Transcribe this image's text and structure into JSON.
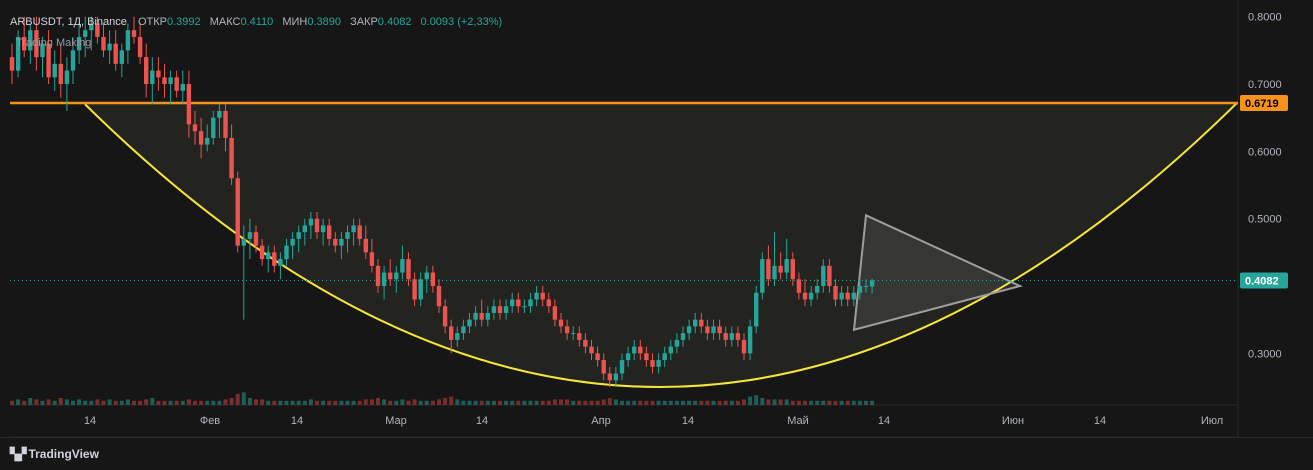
{
  "legend": {
    "symbol": "ARBUSDT, 1Д, Binance",
    "open_label": "ОТКР",
    "open": "0.3992",
    "high_label": "МАКС",
    "high": "0.4110",
    "low_label": "МИН",
    "low": "0.3890",
    "close_label": "ЗАКР",
    "close": "0.4082",
    "change": "0.0093 (+2,33%)"
  },
  "watermark": "Trading Making",
  "footer_brand": "TradingView",
  "colors": {
    "background": "#161616",
    "up": "#26a69a",
    "down": "#ef5350",
    "resistance": "#f7931a",
    "cup_curve": "#f5e53a",
    "triangle": "#9e9e9e",
    "price_label": "#26a69a"
  },
  "chart_data": {
    "type": "candlestick",
    "y_ticks": [
      "0.8000",
      "0.7000",
      "0.6000",
      "0.5000",
      "0.3000"
    ],
    "x_ticks": [
      "14",
      "Фев",
      "14",
      "Мар",
      "14",
      "Апр",
      "14",
      "Май",
      "14",
      "Июн",
      "14",
      "Июл"
    ],
    "ylim": [
      0.25,
      0.81
    ],
    "resistance_level": {
      "label": "0.6719",
      "value": 0.6719
    },
    "last_price": {
      "label": "0.4082",
      "value": 0.4082
    },
    "cup": {
      "start_price": 0.67,
      "bottom_price": 0.25,
      "end_price": 0.6719
    },
    "triangle": {
      "top": 0.505,
      "bottom": 0.335,
      "apex": 0.4
    },
    "candles": [
      [
        0.74,
        0.76,
        0.7,
        0.72
      ],
      [
        0.72,
        0.78,
        0.71,
        0.77
      ],
      [
        0.77,
        0.8,
        0.74,
        0.75
      ],
      [
        0.75,
        0.79,
        0.73,
        0.78
      ],
      [
        0.78,
        0.8,
        0.72,
        0.74
      ],
      [
        0.74,
        0.77,
        0.71,
        0.76
      ],
      [
        0.76,
        0.78,
        0.7,
        0.71
      ],
      [
        0.71,
        0.75,
        0.69,
        0.73
      ],
      [
        0.73,
        0.76,
        0.68,
        0.7
      ],
      [
        0.7,
        0.74,
        0.66,
        0.72
      ],
      [
        0.72,
        0.77,
        0.7,
        0.75
      ],
      [
        0.75,
        0.79,
        0.73,
        0.77
      ],
      [
        0.77,
        0.8,
        0.74,
        0.78
      ],
      [
        0.78,
        0.8,
        0.75,
        0.79
      ],
      [
        0.79,
        0.8,
        0.76,
        0.77
      ],
      [
        0.77,
        0.79,
        0.74,
        0.75
      ],
      [
        0.75,
        0.78,
        0.73,
        0.76
      ],
      [
        0.76,
        0.78,
        0.72,
        0.73
      ],
      [
        0.73,
        0.76,
        0.71,
        0.75
      ],
      [
        0.75,
        0.79,
        0.73,
        0.78
      ],
      [
        0.78,
        0.8,
        0.76,
        0.77
      ],
      [
        0.77,
        0.79,
        0.73,
        0.74
      ],
      [
        0.74,
        0.76,
        0.68,
        0.7
      ],
      [
        0.7,
        0.74,
        0.67,
        0.72
      ],
      [
        0.72,
        0.74,
        0.69,
        0.71
      ],
      [
        0.71,
        0.73,
        0.68,
        0.7
      ],
      [
        0.7,
        0.72,
        0.67,
        0.71
      ],
      [
        0.71,
        0.72,
        0.68,
        0.69
      ],
      [
        0.69,
        0.72,
        0.67,
        0.7
      ],
      [
        0.7,
        0.72,
        0.62,
        0.64
      ],
      [
        0.64,
        0.66,
        0.61,
        0.63
      ],
      [
        0.63,
        0.65,
        0.59,
        0.61
      ],
      [
        0.61,
        0.64,
        0.6,
        0.62
      ],
      [
        0.62,
        0.66,
        0.61,
        0.65
      ],
      [
        0.65,
        0.67,
        0.62,
        0.66
      ],
      [
        0.66,
        0.67,
        0.6,
        0.62
      ],
      [
        0.62,
        0.64,
        0.55,
        0.56
      ],
      [
        0.56,
        0.57,
        0.45,
        0.46
      ],
      [
        0.46,
        0.49,
        0.35,
        0.47
      ],
      [
        0.47,
        0.5,
        0.44,
        0.48
      ],
      [
        0.48,
        0.49,
        0.45,
        0.46
      ],
      [
        0.46,
        0.47,
        0.43,
        0.44
      ],
      [
        0.44,
        0.46,
        0.42,
        0.45
      ],
      [
        0.45,
        0.46,
        0.42,
        0.43
      ],
      [
        0.43,
        0.45,
        0.41,
        0.44
      ],
      [
        0.44,
        0.47,
        0.43,
        0.46
      ],
      [
        0.46,
        0.48,
        0.44,
        0.47
      ],
      [
        0.47,
        0.49,
        0.45,
        0.48
      ],
      [
        0.48,
        0.5,
        0.46,
        0.49
      ],
      [
        0.49,
        0.51,
        0.47,
        0.5
      ],
      [
        0.5,
        0.51,
        0.47,
        0.48
      ],
      [
        0.48,
        0.5,
        0.46,
        0.49
      ],
      [
        0.49,
        0.5,
        0.46,
        0.47
      ],
      [
        0.47,
        0.48,
        0.45,
        0.46
      ],
      [
        0.46,
        0.48,
        0.44,
        0.47
      ],
      [
        0.47,
        0.49,
        0.45,
        0.48
      ],
      [
        0.48,
        0.5,
        0.46,
        0.49
      ],
      [
        0.49,
        0.5,
        0.46,
        0.47
      ],
      [
        0.47,
        0.49,
        0.44,
        0.45
      ],
      [
        0.45,
        0.47,
        0.42,
        0.43
      ],
      [
        0.43,
        0.44,
        0.39,
        0.4
      ],
      [
        0.4,
        0.43,
        0.38,
        0.42
      ],
      [
        0.42,
        0.44,
        0.4,
        0.41
      ],
      [
        0.41,
        0.43,
        0.39,
        0.42
      ],
      [
        0.42,
        0.46,
        0.41,
        0.44
      ],
      [
        0.44,
        0.45,
        0.4,
        0.41
      ],
      [
        0.41,
        0.42,
        0.37,
        0.38
      ],
      [
        0.38,
        0.42,
        0.37,
        0.41
      ],
      [
        0.41,
        0.43,
        0.39,
        0.42
      ],
      [
        0.42,
        0.43,
        0.39,
        0.4
      ],
      [
        0.4,
        0.41,
        0.36,
        0.37
      ],
      [
        0.37,
        0.38,
        0.33,
        0.34
      ],
      [
        0.34,
        0.35,
        0.3,
        0.32
      ],
      [
        0.32,
        0.34,
        0.31,
        0.33
      ],
      [
        0.33,
        0.35,
        0.32,
        0.34
      ],
      [
        0.34,
        0.36,
        0.33,
        0.35
      ],
      [
        0.35,
        0.37,
        0.34,
        0.36
      ],
      [
        0.36,
        0.38,
        0.34,
        0.35
      ],
      [
        0.35,
        0.37,
        0.34,
        0.36
      ],
      [
        0.36,
        0.38,
        0.35,
        0.37
      ],
      [
        0.37,
        0.38,
        0.35,
        0.36
      ],
      [
        0.36,
        0.38,
        0.35,
        0.37
      ],
      [
        0.37,
        0.39,
        0.36,
        0.38
      ],
      [
        0.38,
        0.39,
        0.36,
        0.37
      ],
      [
        0.37,
        0.38,
        0.36,
        0.37
      ],
      [
        0.37,
        0.39,
        0.36,
        0.38
      ],
      [
        0.38,
        0.4,
        0.37,
        0.39
      ],
      [
        0.39,
        0.4,
        0.37,
        0.38
      ],
      [
        0.38,
        0.39,
        0.36,
        0.37
      ],
      [
        0.37,
        0.38,
        0.34,
        0.35
      ],
      [
        0.35,
        0.36,
        0.33,
        0.34
      ],
      [
        0.34,
        0.35,
        0.32,
        0.33
      ],
      [
        0.33,
        0.34,
        0.32,
        0.33
      ],
      [
        0.33,
        0.34,
        0.31,
        0.32
      ],
      [
        0.32,
        0.33,
        0.3,
        0.31
      ],
      [
        0.31,
        0.32,
        0.29,
        0.3
      ],
      [
        0.3,
        0.31,
        0.28,
        0.29
      ],
      [
        0.29,
        0.3,
        0.26,
        0.27
      ],
      [
        0.27,
        0.28,
        0.25,
        0.26
      ],
      [
        0.26,
        0.28,
        0.25,
        0.27
      ],
      [
        0.27,
        0.3,
        0.26,
        0.29
      ],
      [
        0.29,
        0.31,
        0.28,
        0.3
      ],
      [
        0.3,
        0.32,
        0.29,
        0.31
      ],
      [
        0.31,
        0.32,
        0.29,
        0.3
      ],
      [
        0.3,
        0.31,
        0.28,
        0.29
      ],
      [
        0.29,
        0.3,
        0.27,
        0.28
      ],
      [
        0.28,
        0.3,
        0.27,
        0.29
      ],
      [
        0.29,
        0.31,
        0.28,
        0.3
      ],
      [
        0.3,
        0.32,
        0.29,
        0.31
      ],
      [
        0.31,
        0.33,
        0.3,
        0.32
      ],
      [
        0.32,
        0.34,
        0.31,
        0.33
      ],
      [
        0.33,
        0.35,
        0.32,
        0.34
      ],
      [
        0.34,
        0.36,
        0.33,
        0.35
      ],
      [
        0.35,
        0.36,
        0.33,
        0.34
      ],
      [
        0.34,
        0.35,
        0.32,
        0.33
      ],
      [
        0.33,
        0.35,
        0.32,
        0.34
      ],
      [
        0.34,
        0.35,
        0.32,
        0.33
      ],
      [
        0.33,
        0.34,
        0.31,
        0.32
      ],
      [
        0.32,
        0.34,
        0.31,
        0.33
      ],
      [
        0.33,
        0.34,
        0.31,
        0.32
      ],
      [
        0.32,
        0.33,
        0.29,
        0.3
      ],
      [
        0.3,
        0.35,
        0.29,
        0.34
      ],
      [
        0.34,
        0.4,
        0.33,
        0.39
      ],
      [
        0.39,
        0.45,
        0.38,
        0.44
      ],
      [
        0.44,
        0.46,
        0.4,
        0.41
      ],
      [
        0.41,
        0.48,
        0.4,
        0.43
      ],
      [
        0.43,
        0.45,
        0.41,
        0.42
      ],
      [
        0.42,
        0.47,
        0.41,
        0.44
      ],
      [
        0.44,
        0.45,
        0.4,
        0.41
      ],
      [
        0.41,
        0.42,
        0.38,
        0.39
      ],
      [
        0.39,
        0.41,
        0.37,
        0.38
      ],
      [
        0.38,
        0.4,
        0.37,
        0.39
      ],
      [
        0.39,
        0.41,
        0.38,
        0.4
      ],
      [
        0.4,
        0.44,
        0.39,
        0.43
      ],
      [
        0.43,
        0.44,
        0.39,
        0.4
      ],
      [
        0.4,
        0.41,
        0.37,
        0.38
      ],
      [
        0.38,
        0.4,
        0.37,
        0.39
      ],
      [
        0.39,
        0.4,
        0.37,
        0.38
      ],
      [
        0.38,
        0.4,
        0.37,
        0.39
      ],
      [
        0.39,
        0.41,
        0.38,
        0.4
      ],
      [
        0.4,
        0.41,
        0.39,
        0.4
      ],
      [
        0.3992,
        0.411,
        0.389,
        0.4082
      ]
    ],
    "volume": [
      3,
      4,
      3,
      5,
      4,
      3,
      4,
      3,
      5,
      4,
      3,
      4,
      3,
      3,
      4,
      3,
      4,
      3,
      3,
      4,
      3,
      3,
      4,
      5,
      3,
      3,
      3,
      3,
      3,
      4,
      3,
      3,
      3,
      3,
      3,
      4,
      5,
      8,
      9,
      5,
      4,
      4,
      3,
      3,
      3,
      3,
      3,
      3,
      3,
      4,
      3,
      3,
      3,
      3,
      3,
      3,
      3,
      3,
      4,
      4,
      5,
      4,
      3,
      3,
      4,
      3,
      4,
      3,
      3,
      3,
      4,
      5,
      6,
      4,
      3,
      3,
      3,
      3,
      3,
      3,
      3,
      3,
      3,
      3,
      3,
      3,
      3,
      3,
      3,
      4,
      4,
      4,
      3,
      3,
      3,
      3,
      3,
      4,
      5,
      4,
      3,
      3,
      3,
      3,
      3,
      3,
      3,
      3,
      3,
      3,
      3,
      3,
      3,
      3,
      3,
      3,
      3,
      3,
      3,
      3,
      4,
      6,
      7,
      5,
      4,
      4,
      4,
      4,
      3,
      3,
      3,
      3,
      3,
      3,
      3,
      3,
      3,
      3,
      3,
      3,
      3,
      3
    ]
  }
}
